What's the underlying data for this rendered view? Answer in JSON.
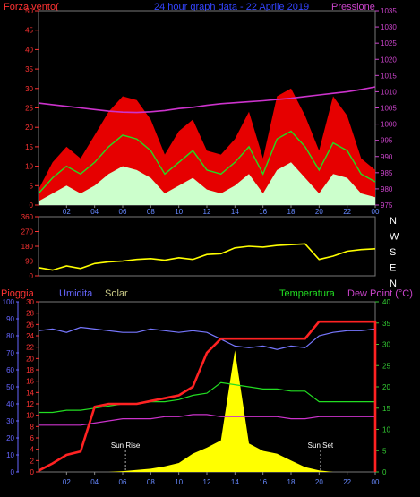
{
  "title": "24 hour graph data - 22 Aprile 2019",
  "colors": {
    "wind_max": "#ff0000",
    "wind_avg": "#22dd22",
    "wind_min": "#ccffcc",
    "pressure": "#cc33cc",
    "direction": "#ffff00",
    "rain": "#ff2222",
    "humidity": "#7777ff",
    "solar": "#ffff00",
    "temperature": "#22dd22",
    "dewpoint": "#cc33cc",
    "axis_left_red": "#ff3333",
    "axis_humidity": "#6666ff",
    "axis_right": "#cc44cc",
    "axis_right_temp": "#33cc33",
    "hour_label": "#6688ff",
    "grid": "#444444"
  },
  "x_ticks": [
    "02",
    "04",
    "06",
    "08",
    "10",
    "12",
    "14",
    "16",
    "18",
    "20",
    "22",
    "00"
  ],
  "chart_data": [
    {
      "type": "line",
      "title": "24 hour graph data - 22 Aprile 2019",
      "ylabel": "Forza vento(",
      "y2label": "Pressione",
      "ylim": [
        0,
        50
      ],
      "y_ticks": [
        0,
        5,
        10,
        15,
        20,
        25,
        30,
        35,
        40,
        45,
        50
      ],
      "y2lim": [
        975,
        1035
      ],
      "y2_ticks": [
        975,
        980,
        985,
        990,
        995,
        1000,
        1005,
        1010,
        1015,
        1020,
        1025,
        1030,
        1035
      ],
      "x": [
        0,
        1,
        2,
        3,
        4,
        5,
        6,
        7,
        8,
        9,
        10,
        11,
        12,
        13,
        14,
        15,
        16,
        17,
        18,
        19,
        20,
        21,
        22,
        23,
        24
      ],
      "series": [
        {
          "name": "max",
          "values": [
            4,
            11,
            15,
            12,
            18,
            24,
            28,
            27,
            22,
            13,
            19,
            22,
            14,
            13,
            17,
            24,
            12,
            28,
            30,
            23,
            14,
            28,
            23,
            12,
            9
          ]
        },
        {
          "name": "avg",
          "values": [
            3,
            7,
            10,
            8,
            11,
            15,
            18,
            17,
            14,
            8,
            11,
            14,
            9,
            8,
            11,
            15,
            8,
            17,
            19,
            15,
            9,
            16,
            14,
            8,
            6
          ]
        },
        {
          "name": "min",
          "values": [
            1,
            3,
            5,
            3,
            5,
            8,
            10,
            9,
            7,
            3,
            5,
            7,
            4,
            3,
            5,
            8,
            3,
            9,
            11,
            7,
            3,
            8,
            7,
            3,
            2
          ]
        },
        {
          "name": "pressure",
          "values": [
            1006.5,
            1006,
            1005.5,
            1005,
            1004.5,
            1004,
            1003.7,
            1003.6,
            1003.8,
            1004.2,
            1004.8,
            1005.2,
            1005.8,
            1006.3,
            1006.6,
            1006.9,
            1007.2,
            1007.6,
            1008,
            1008.5,
            1009,
            1009.5,
            1010,
            1010.7,
            1011.5
          ]
        }
      ]
    },
    {
      "type": "line",
      "ylim": [
        0,
        360
      ],
      "y_ticks": [
        0,
        90,
        180,
        270,
        360
      ],
      "compass": [
        "N",
        "W",
        "S",
        "E",
        "N"
      ],
      "x": [
        0,
        1,
        2,
        3,
        4,
        5,
        6,
        7,
        8,
        9,
        10,
        11,
        12,
        13,
        14,
        15,
        16,
        17,
        18,
        19,
        20,
        21,
        22,
        23,
        24
      ],
      "series": [
        {
          "name": "direction",
          "values": [
            50,
            35,
            60,
            45,
            75,
            85,
            90,
            100,
            105,
            95,
            110,
            100,
            130,
            135,
            170,
            180,
            175,
            185,
            190,
            195,
            100,
            120,
            150,
            160,
            165
          ]
        }
      ]
    },
    {
      "type": "line",
      "labels": {
        "rain": "Pioggia",
        "humidity": "Umidita",
        "solar": "Solar",
        "temperature": "Temperatura",
        "dewpoint": "Dew Point (°C)"
      },
      "annotations": {
        "sunrise": "Sun Rise",
        "sunset": "Sun Set"
      },
      "humidity_ticks": [
        0,
        10,
        20,
        30,
        40,
        50,
        60,
        70,
        80,
        90,
        100
      ],
      "rain_ticks": [
        0,
        2,
        4,
        6,
        8,
        10,
        12,
        14,
        16,
        18,
        20,
        22,
        24,
        26,
        28,
        30
      ],
      "temp_ticks": [
        0,
        5,
        10,
        15,
        20,
        25,
        30,
        35,
        40
      ],
      "rain_lim": [
        0,
        30
      ],
      "temp_lim": [
        0,
        40
      ],
      "x": [
        0,
        1,
        2,
        3,
        4,
        5,
        6,
        7,
        8,
        9,
        10,
        11,
        12,
        13,
        14,
        15,
        16,
        17,
        18,
        19,
        20,
        21,
        22,
        23,
        24
      ],
      "series": [
        {
          "name": "rain",
          "values": [
            0.2,
            1.5,
            3,
            3.6,
            11.5,
            12,
            12,
            12,
            12.5,
            13,
            13.5,
            15,
            21,
            23.5,
            23.5,
            23.5,
            23.5,
            23.5,
            23.5,
            23.5,
            26.5,
            26.5,
            26.5,
            26.5,
            26.5
          ]
        },
        {
          "name": "humidity",
          "values": [
            83,
            84,
            82,
            85,
            84,
            83,
            82,
            82,
            84,
            83,
            82,
            83,
            82,
            78,
            74,
            73,
            74,
            72,
            74,
            73,
            80,
            82,
            83,
            83,
            84
          ]
        },
        {
          "name": "temperature",
          "values": [
            14,
            14,
            14.5,
            14.5,
            15,
            15.5,
            16,
            16,
            16.5,
            16.5,
            17,
            18,
            18.5,
            21,
            20.5,
            20,
            19.5,
            19.5,
            19,
            19,
            16.5,
            16.5,
            16.5,
            16.5,
            16.5
          ]
        },
        {
          "name": "dewpoint",
          "values": [
            11,
            11,
            11,
            11,
            11.5,
            12,
            12.5,
            12.5,
            12.5,
            13,
            13,
            13.5,
            13.5,
            13,
            13,
            13,
            13,
            13,
            12.5,
            12.5,
            13,
            13,
            13,
            13,
            13
          ]
        },
        {
          "name": "solar",
          "values": [
            0,
            0,
            0,
            0,
            0,
            0,
            2,
            5,
            8,
            14,
            22,
            45,
            60,
            78,
            300,
            70,
            52,
            45,
            28,
            12,
            4,
            0,
            0,
            0,
            0
          ]
        }
      ],
      "solar_max": 420
    }
  ]
}
